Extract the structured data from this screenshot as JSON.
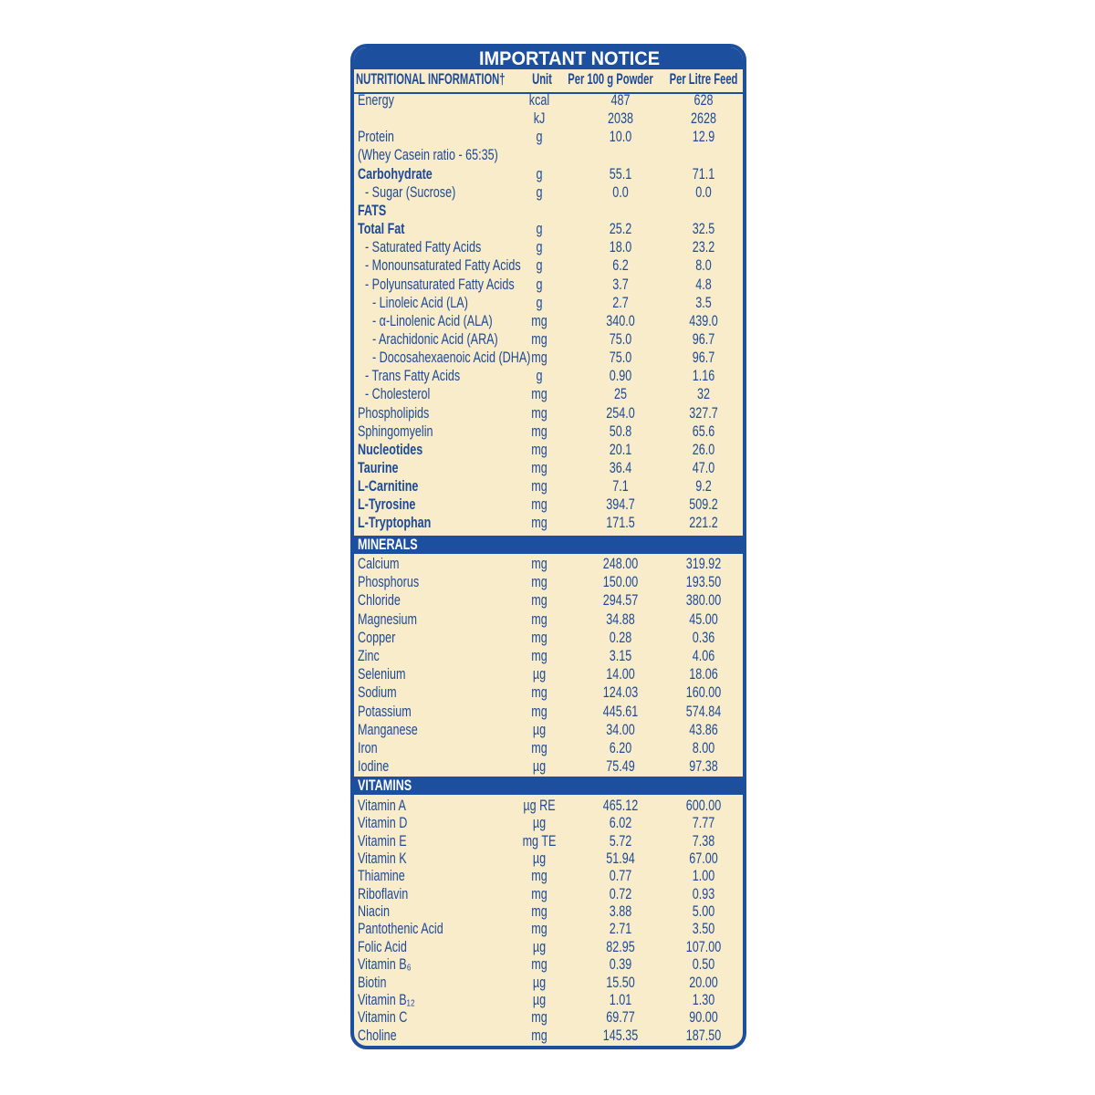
{
  "title": "IMPORTANT NOTICE",
  "header": [
    "NUTRITIONAL INFORMATION†",
    "Unit",
    "Per 100 g Powder",
    "Per Litre Feed"
  ],
  "sections": [
    {
      "rows": [
        {
          "name": "Energy",
          "unit": "kcal",
          "per_100g": "487",
          "per_litre": "628"
        },
        {
          "unit": "kJ",
          "per_100g": "2038",
          "per_litre": "2628"
        },
        {
          "name": "Protein",
          "unit": "g",
          "per_100g": "10.0",
          "per_litre": "12.9"
        },
        {
          "name": "(Whey Casein ratio - 65:35)"
        },
        {
          "name": "Carbohydrate",
          "bold": true,
          "unit": "g",
          "per_100g": "55.1",
          "per_litre": "71.1"
        },
        {
          "name": "- Sugar (Sucrose)",
          "indent": 1,
          "unit": "g",
          "per_100g": "0.0",
          "per_litre": "0.0"
        },
        {
          "name": "FATS",
          "bold": true
        },
        {
          "name": "Total Fat",
          "bold": true,
          "unit": "g",
          "per_100g": "25.2",
          "per_litre": "32.5"
        },
        {
          "name": "- Saturated Fatty Acids",
          "indent": 1,
          "unit": "g",
          "per_100g": "18.0",
          "per_litre": "23.2"
        },
        {
          "name": "- Monounsaturated Fatty Acids",
          "indent": 1,
          "unit": "g",
          "per_100g": "6.2",
          "per_litre": "8.0"
        },
        {
          "name": "- Polyunsaturated Fatty Acids",
          "indent": 1,
          "unit": "g",
          "per_100g": "3.7",
          "per_litre": "4.8"
        },
        {
          "name": "- Linoleic Acid (LA)",
          "indent": 2,
          "unit": "g",
          "per_100g": "2.7",
          "per_litre": "3.5"
        },
        {
          "name": "- α-Linolenic Acid (ALA)",
          "indent": 2,
          "unit": "mg",
          "per_100g": "340.0",
          "per_litre": "439.0"
        },
        {
          "name": "- Arachidonic Acid (ARA)",
          "indent": 2,
          "unit": "mg",
          "per_100g": "75.0",
          "per_litre": "96.7"
        },
        {
          "name": "- Docosahexaenoic Acid (DHA)",
          "indent": 2,
          "unit": "mg",
          "per_100g": "75.0",
          "per_litre": "96.7"
        },
        {
          "name": "- Trans Fatty Acids",
          "indent": 1,
          "unit": "g",
          "per_100g": "0.90",
          "per_litre": "1.16"
        },
        {
          "name": "- Cholesterol",
          "indent": 1,
          "unit": "mg",
          "per_100g": "25",
          "per_litre": "32"
        },
        {
          "name": "Phospholipids",
          "unit": "mg",
          "per_100g": "254.0",
          "per_litre": "327.7"
        },
        {
          "name": "Sphingomyelin",
          "unit": "mg",
          "per_100g": "50.8",
          "per_litre": "65.6"
        },
        {
          "name": "Nucleotides",
          "bold": true,
          "unit": "mg",
          "per_100g": "20.1",
          "per_litre": "26.0"
        },
        {
          "name": "Taurine",
          "bold": true,
          "unit": "mg",
          "per_100g": "36.4",
          "per_litre": "47.0"
        },
        {
          "name": "L-Carnitine",
          "bold": true,
          "unit": "mg",
          "per_100g": "7.1",
          "per_litre": "9.2"
        },
        {
          "name": "L-Tyrosine",
          "bold": true,
          "unit": "mg",
          "per_100g": "394.7",
          "per_litre": "509.2"
        },
        {
          "name": "L-Tryptophan",
          "bold": true,
          "unit": "mg",
          "per_100g": "171.5",
          "per_litre": "221.2"
        }
      ]
    },
    {
      "title": "MINERALS",
      "rows": [
        {
          "name": "Calcium",
          "unit": "mg",
          "per_100g": "248.00",
          "per_litre": "319.92"
        },
        {
          "name": "Phosphorus",
          "unit": "mg",
          "per_100g": "150.00",
          "per_litre": "193.50"
        },
        {
          "name": "Chloride",
          "unit": "mg",
          "per_100g": "294.57",
          "per_litre": "380.00"
        },
        {
          "name": "Magnesium",
          "unit": "mg",
          "per_100g": "34.88",
          "per_litre": "45.00"
        },
        {
          "name": "Copper",
          "unit": "mg",
          "per_100g": "0.28",
          "per_litre": "0.36"
        },
        {
          "name": "Zinc",
          "unit": "mg",
          "per_100g": "3.15",
          "per_litre": "4.06"
        },
        {
          "name": "Selenium",
          "unit": "µg",
          "per_100g": "14.00",
          "per_litre": "18.06"
        },
        {
          "name": "Sodium",
          "unit": "mg",
          "per_100g": "124.03",
          "per_litre": "160.00"
        },
        {
          "name": "Potassium",
          "unit": "mg",
          "per_100g": "445.61",
          "per_litre": "574.84"
        },
        {
          "name": "Manganese",
          "unit": "µg",
          "per_100g": "34.00",
          "per_litre": "43.86"
        },
        {
          "name": "Iron",
          "unit": "mg",
          "per_100g": "6.20",
          "per_litre": "8.00"
        },
        {
          "name": "Iodine",
          "unit": "µg",
          "per_100g": "75.49",
          "per_litre": "97.38"
        }
      ]
    },
    {
      "title": "VITAMINS",
      "rows": [
        {
          "name": "Vitamin A",
          "unit": "µg RE",
          "per_100g": "465.12",
          "per_litre": "600.00"
        },
        {
          "name": "Vitamin D",
          "unit": "µg",
          "per_100g": "6.02",
          "per_litre": "7.77"
        },
        {
          "name": "Vitamin E",
          "unit": "mg TE",
          "per_100g": "5.72",
          "per_litre": "7.38"
        },
        {
          "name": "Vitamin K",
          "unit": "µg",
          "per_100g": "51.94",
          "per_litre": "67.00"
        },
        {
          "name": "Thiamine",
          "unit": "mg",
          "per_100g": "0.77",
          "per_litre": "1.00"
        },
        {
          "name": "Riboflavin",
          "unit": "mg",
          "per_100g": "0.72",
          "per_litre": "0.93"
        },
        {
          "name": "Niacin",
          "unit": "mg",
          "per_100g": "3.88",
          "per_litre": "5.00"
        },
        {
          "name": "Pantothenic Acid",
          "unit": "mg",
          "per_100g": "2.71",
          "per_litre": "3.50"
        },
        {
          "name": "Folic Acid",
          "unit": "µg",
          "per_100g": "82.95",
          "per_litre": "107.00"
        },
        {
          "name": "Vitamin B₆",
          "unit": "mg",
          "per_100g": "0.39",
          "per_litre": "0.50"
        },
        {
          "name": "Biotin",
          "unit": "µg",
          "per_100g": "15.50",
          "per_litre": "20.00"
        },
        {
          "name": "Vitamin B₁₂",
          "unit": "µg",
          "per_100g": "1.01",
          "per_litre": "1.30"
        },
        {
          "name": "Vitamin C",
          "unit": "mg",
          "per_100g": "69.77",
          "per_litre": "90.00"
        },
        {
          "name": "Choline",
          "unit": "mg",
          "per_100g": "145.35",
          "per_litre": "187.50"
        }
      ]
    }
  ]
}
